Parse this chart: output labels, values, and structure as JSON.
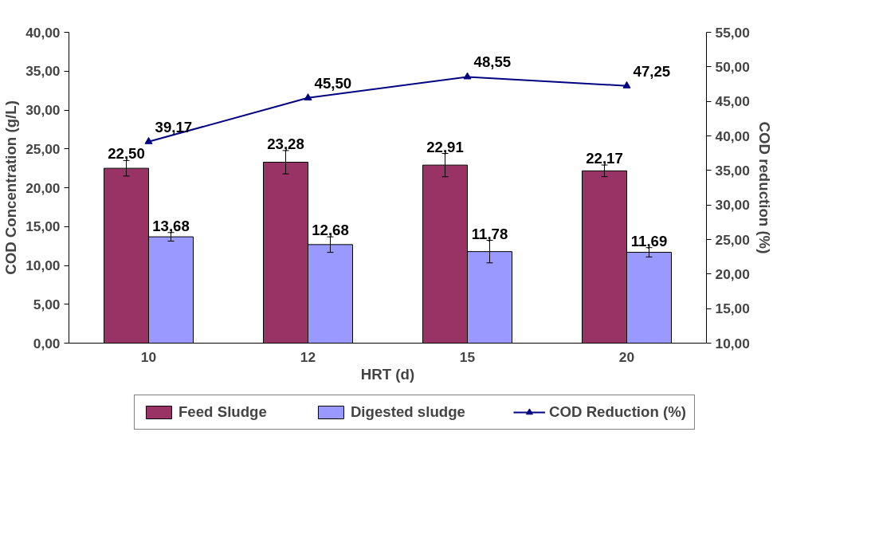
{
  "chart_data": {
    "type": "bar",
    "xlabel": "HRT (d)",
    "ylabel": "COD Concentration (g/L)",
    "y2label": "COD reduction (%)",
    "categories": [
      "10",
      "12",
      "15",
      "20"
    ],
    "series": [
      {
        "name": "Feed Sludge",
        "color": "#993366",
        "values": [
          22.5,
          23.28,
          22.91,
          22.17
        ],
        "errors": [
          1.0,
          1.5,
          1.5,
          0.75
        ],
        "value_labels": [
          "22,50",
          "23,28",
          "22,91",
          "22,17"
        ]
      },
      {
        "name": "Digested sludge",
        "color": "#9999ff",
        "values": [
          13.68,
          12.68,
          11.78,
          11.69
        ],
        "errors": [
          0.55,
          1.0,
          1.45,
          0.6
        ],
        "value_labels": [
          "13,68",
          "12,68",
          "11,78",
          "11,69"
        ]
      },
      {
        "name": "COD Reduction (%)",
        "type": "line",
        "axis": "y2",
        "color": "#000080",
        "marker": "triangle",
        "line_style": "solid",
        "values": [
          39.17,
          45.5,
          48.55,
          47.25
        ],
        "value_labels": [
          "39,17",
          "45,50",
          "48,55",
          "47,25"
        ]
      }
    ],
    "ylim": [
      0,
      40
    ],
    "yticks": [
      {
        "value": 0,
        "label": "0,00"
      },
      {
        "value": 5,
        "label": "5,00"
      },
      {
        "value": 10,
        "label": "10,00"
      },
      {
        "value": 15,
        "label": "15,00"
      },
      {
        "value": 20,
        "label": "20,00"
      },
      {
        "value": 25,
        "label": "25,00"
      },
      {
        "value": 30,
        "label": "30,00"
      },
      {
        "value": 35,
        "label": "35,00"
      },
      {
        "value": 40,
        "label": "40,00"
      }
    ],
    "y2lim": [
      10,
      55
    ],
    "y2ticks": [
      {
        "value": 10,
        "label": "10,00"
      },
      {
        "value": 15,
        "label": "15,00"
      },
      {
        "value": 20,
        "label": "20,00"
      },
      {
        "value": 25,
        "label": "25,00"
      },
      {
        "value": 30,
        "label": "30,00"
      },
      {
        "value": 35,
        "label": "35,00"
      },
      {
        "value": 40,
        "label": "40,00"
      },
      {
        "value": 45,
        "label": "45,00"
      },
      {
        "value": 50,
        "label": "50,00"
      },
      {
        "value": 55,
        "label": "55,00"
      }
    ],
    "grid": false,
    "legend": "bottom"
  }
}
